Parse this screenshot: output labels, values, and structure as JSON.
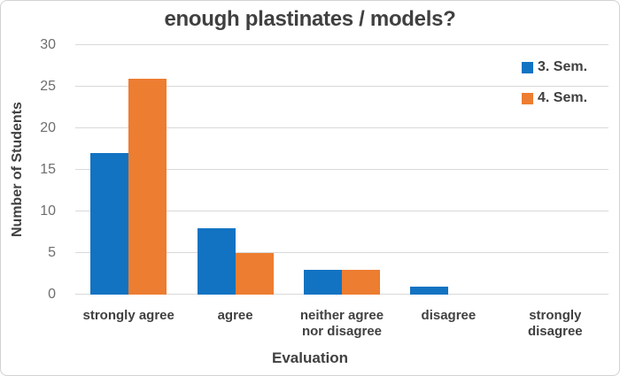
{
  "chart_data": {
    "type": "bar",
    "title": "enough plastinates / models?",
    "xlabel": "Evaluation",
    "ylabel": "Number of Students",
    "categories": [
      "strongly agree",
      "agree",
      "neither agree nor disagree",
      "disagree",
      "strongly disagree"
    ],
    "series": [
      {
        "name": "3. Sem.",
        "color": "#1273c2",
        "values": [
          17,
          8,
          3,
          1,
          0
        ]
      },
      {
        "name": "4. Sem.",
        "color": "#ed7d31",
        "values": [
          26,
          5,
          3,
          0,
          0
        ]
      }
    ],
    "ylim": [
      0,
      30
    ],
    "yticks": [
      0,
      5,
      10,
      15,
      20,
      25,
      30
    ],
    "grid": "horizontal",
    "legend_position": "top-right"
  },
  "colors": {
    "background": "#ffffff",
    "border": "#d2d2d2",
    "gridline": "#d9d9d9",
    "tick_text": "#6e6e6e",
    "label_text": "#404040"
  }
}
